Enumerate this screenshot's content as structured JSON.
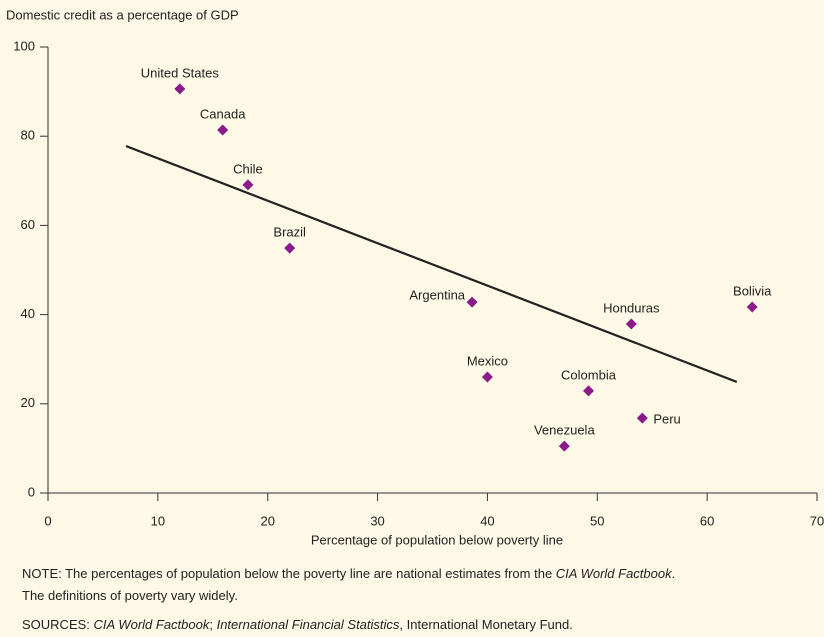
{
  "chart_data": {
    "type": "scatter",
    "y_label": "Domestic credit as a percentage of GDP",
    "x_label": "Percentage of population below poverty line",
    "categories": [
      "United States",
      "Canada",
      "Chile",
      "Brazil",
      "Argentina",
      "Mexico",
      "Venezuela",
      "Colombia",
      "Peru",
      "Honduras",
      "Bolivia"
    ],
    "x": [
      12.0,
      15.9,
      18.2,
      22.0,
      38.6,
      40.0,
      47.0,
      49.2,
      54.1,
      53.1,
      64.1
    ],
    "values": [
      90.6,
      81.4,
      69.1,
      54.9,
      42.8,
      26.0,
      10.5,
      22.9,
      16.8,
      37.9,
      41.7
    ],
    "color": "#8b1a8b",
    "trend": {
      "x": [
        7.1,
        62.7
      ],
      "values": [
        77.8,
        24.9
      ],
      "color": "#222222"
    },
    "xlim": [
      0,
      70
    ],
    "xticks": [
      0,
      10,
      20,
      30,
      40,
      50,
      60,
      70
    ],
    "ylim": [
      0,
      100
    ],
    "yticks": [
      0,
      20,
      40,
      60,
      80,
      100
    ],
    "grid": false
  },
  "notes": [
    [
      {
        "text": "NOTE: The percentages of population below the poverty line are national estimates from the ",
        "italic": false
      },
      {
        "text": "CIA World Factbook",
        "italic": true
      },
      {
        "text": ".",
        "italic": false
      }
    ],
    [
      {
        "text": "The definitions of poverty vary widely.",
        "italic": false
      }
    ],
    [
      {
        "text": "SOURCES: ",
        "italic": false
      },
      {
        "text": "CIA World Factbook",
        "italic": true
      },
      {
        "text": "; ",
        "italic": false
      },
      {
        "text": "International Financial Statistics",
        "italic": true
      },
      {
        "text": ", International Monetary Fund.",
        "italic": false
      }
    ]
  ]
}
